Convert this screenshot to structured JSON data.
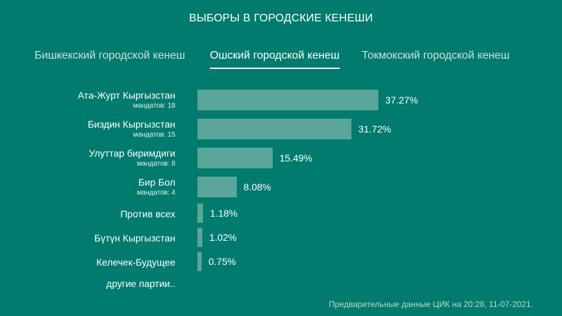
{
  "title": "ВЫБОРЫ В ГОРОДСКИЕ КЕНЕШИ",
  "tabs": [
    {
      "label": "Бишкекский городской кенеш",
      "active": false
    },
    {
      "label": "Ошский городской кенеш",
      "active": true
    },
    {
      "label": "Токмокский городской кенеш",
      "active": false
    }
  ],
  "chart_data": {
    "type": "bar",
    "orientation": "horizontal",
    "categories": [
      "Ата-Журт Кыргызстан",
      "Биздин Кыргызстан",
      "Улуттар биримдиги",
      "Бир Бол",
      "Против всех",
      "Бүтүн Кыргызстан",
      "Келечек-Будущее"
    ],
    "values": [
      37.27,
      31.72,
      15.49,
      8.08,
      1.18,
      1.02,
      0.75
    ],
    "value_labels": [
      "37.27%",
      "31.72%",
      "15.49%",
      "8.08%",
      "1.18%",
      "1.02%",
      "0.75%"
    ],
    "sublabels": [
      "мандатов: 18",
      "мандатов: 15",
      "мандатов: 8",
      "мандатов: 4",
      "",
      "",
      ""
    ],
    "unit": "%",
    "bar_color": "#5aa69b"
  },
  "other_parties": "другие партии..",
  "footnote": "Предварительные данные ЦИК на 20:28, 11-07-2021."
}
